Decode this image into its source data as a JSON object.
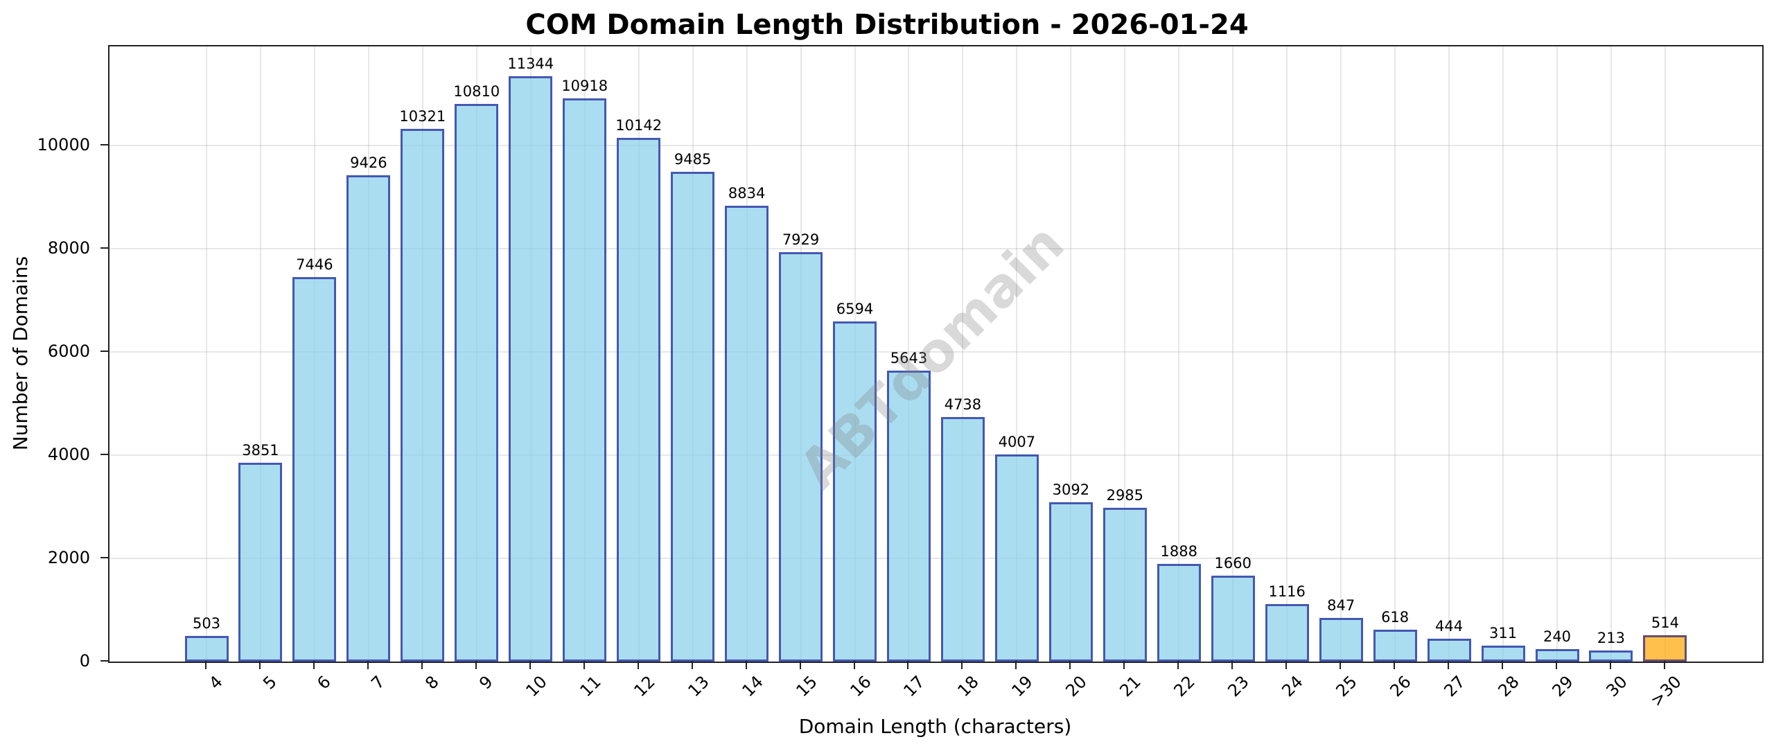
{
  "chart_data": {
    "type": "bar",
    "title": "COM Domain Length Distribution - 2026-01-24",
    "xlabel": "Domain Length (characters)",
    "ylabel": "Number of Domains",
    "categories": [
      "4",
      "5",
      "6",
      "7",
      "8",
      "9",
      "10",
      "11",
      "12",
      "13",
      "14",
      "15",
      "16",
      "17",
      "18",
      "19",
      "20",
      "21",
      "22",
      "23",
      "24",
      "25",
      "26",
      "27",
      "28",
      "29",
      "30",
      ">30"
    ],
    "values": [
      503,
      3851,
      7446,
      9426,
      10321,
      10810,
      11344,
      10918,
      10142,
      9485,
      8834,
      7929,
      6594,
      5643,
      4738,
      4007,
      3092,
      2985,
      1888,
      1660,
      1116,
      847,
      618,
      444,
      311,
      240,
      213,
      514
    ],
    "yticks": [
      0,
      2000,
      4000,
      6000,
      8000,
      10000
    ],
    "ylim": [
      0,
      11919
    ],
    "grid": true,
    "legend": null,
    "bar_labels": true,
    "watermark": "ABTdomain",
    "colors": {
      "bar_fill": "#87CEEB",
      "bar_edge": "#00008B",
      "highlight_fill": "#FFA500",
      "highlight_category": ">30"
    }
  }
}
